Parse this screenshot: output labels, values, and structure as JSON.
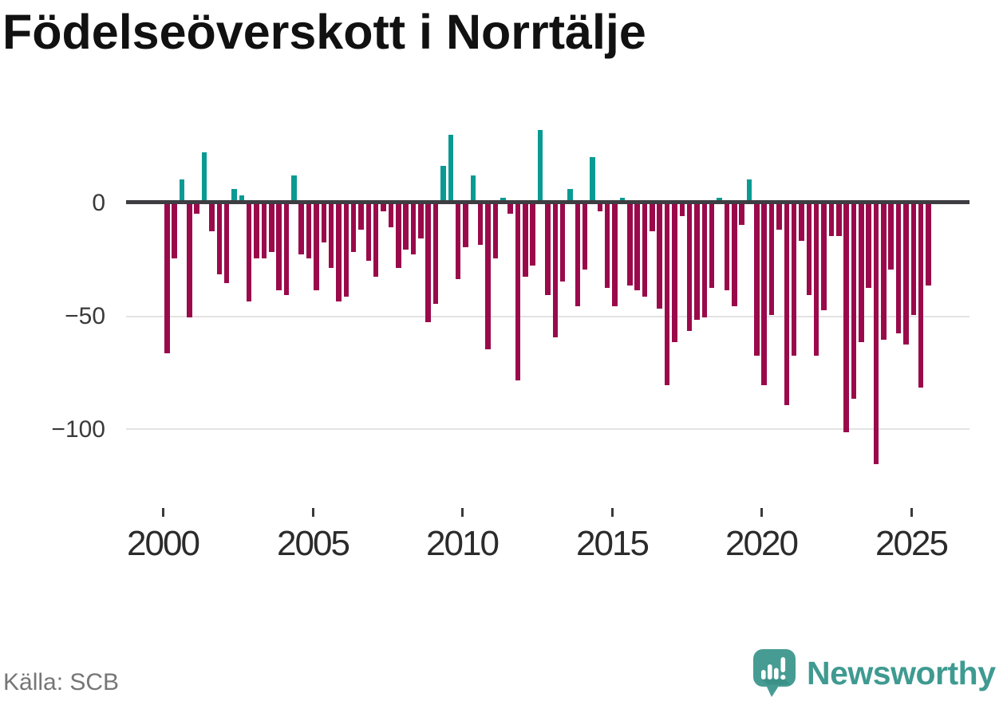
{
  "title": "Födelseöverskott i Norrtälje",
  "source": "Källa: SCB",
  "brand": {
    "name": "Newsworthy",
    "color": "#3f9a91"
  },
  "colors": {
    "positive": "#089a93",
    "negative": "#9a0a4b",
    "axis": "#3d3d42",
    "grid": "#e3e3e3",
    "y_label": "#3a3a3a",
    "x_label": "#2b2b2b",
    "title": "#111111",
    "source": "#767676"
  },
  "chart_data": {
    "type": "bar",
    "title": "Födelseöverskott i Norrtälje",
    "xlabel": "",
    "ylabel": "",
    "frequency": "quarterly",
    "start_year": 2000,
    "start_quarter": 1,
    "end_year": 2025,
    "end_quarter": 3,
    "ylim": [
      -120,
      35
    ],
    "grid": "horizontal",
    "legend": "none",
    "y_ticks": [
      0,
      -50,
      -100
    ],
    "y_tick_labels": [
      "0",
      "−50",
      "−100"
    ],
    "x_tick_years": [
      2000,
      2005,
      2010,
      2015,
      2020,
      2025
    ],
    "x_tick_labels": [
      "2000",
      "2005",
      "2010",
      "2015",
      "2020",
      "2025"
    ],
    "positive_color_meaning": "birth surplus (teal)",
    "negative_color_meaning": "birth deficit (dark red)",
    "values": [
      -67,
      -25,
      10,
      -51,
      -5,
      22,
      -13,
      -32,
      -36,
      6,
      3,
      -44,
      -25,
      -25,
      -22,
      -39,
      -41,
      12,
      -23,
      -25,
      -39,
      -18,
      -29,
      -44,
      -42,
      -22,
      -12,
      -26,
      -33,
      -4,
      -11,
      -29,
      -21,
      -23,
      -16,
      -53,
      -45,
      16,
      30,
      -34,
      -20,
      12,
      -19,
      -65,
      -25,
      2,
      -5,
      -79,
      -33,
      -28,
      32,
      -41,
      -60,
      -35,
      6,
      -46,
      -30,
      20,
      -4,
      -38,
      -46,
      2,
      -37,
      -39,
      -42,
      -13,
      -47,
      -81,
      -62,
      -6,
      -57,
      -52,
      -51,
      -38,
      2,
      -39,
      -46,
      -10,
      10,
      -68,
      -81,
      -50,
      -12,
      -90,
      -68,
      -17,
      -41,
      -68,
      -48,
      -15,
      -15,
      -102,
      -87,
      -62,
      -38,
      -116,
      -61,
      -30,
      -58,
      -63,
      -50,
      -82,
      -37
    ]
  }
}
